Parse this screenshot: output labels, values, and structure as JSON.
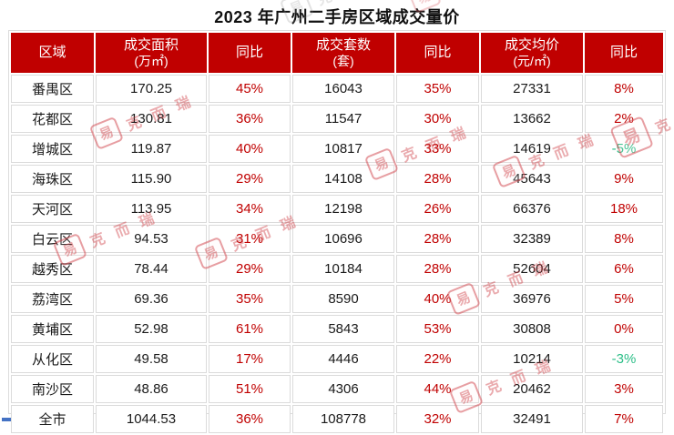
{
  "title": "2023 年广州二手房区域成交量价",
  "chart_data": {
    "type": "table",
    "title": "2023 年广州二手房区域成交量价",
    "columns": [
      "区域",
      "成交面积\n(万㎡)",
      "同比",
      "成交套数\n(套)",
      "同比",
      "成交均价\n(元/㎡)",
      "同比"
    ],
    "rows": [
      [
        "番禺区",
        "170.25",
        "45%",
        "16043",
        "35%",
        "27331",
        "8%"
      ],
      [
        "花都区",
        "130.81",
        "36%",
        "11547",
        "30%",
        "13662",
        "2%"
      ],
      [
        "增城区",
        "119.87",
        "40%",
        "10817",
        "33%",
        "14619",
        "-5%"
      ],
      [
        "海珠区",
        "115.90",
        "29%",
        "14108",
        "28%",
        "45643",
        "9%"
      ],
      [
        "天河区",
        "113.95",
        "34%",
        "12198",
        "26%",
        "66376",
        "18%"
      ],
      [
        "白云区",
        "94.53",
        "31%",
        "10696",
        "28%",
        "32389",
        "8%"
      ],
      [
        "越秀区",
        "78.44",
        "29%",
        "10184",
        "28%",
        "52604",
        "6%"
      ],
      [
        "荔湾区",
        "69.36",
        "35%",
        "8590",
        "40%",
        "36976",
        "5%"
      ],
      [
        "黄埔区",
        "52.98",
        "61%",
        "5843",
        "53%",
        "30808",
        "0%"
      ],
      [
        "从化区",
        "49.58",
        "17%",
        "4446",
        "22%",
        "10214",
        "-3%"
      ],
      [
        "南沙区",
        "48.86",
        "51%",
        "4306",
        "44%",
        "20462",
        "3%"
      ],
      [
        "全市",
        "1044.53",
        "36%",
        "108778",
        "32%",
        "32491",
        "7%"
      ]
    ],
    "yoy_column_indexes": [
      2,
      4,
      6
    ],
    "legend_position": "none",
    "grid": true
  },
  "colors": {
    "header_bg": "#C00000",
    "header_text": "#FFFFFF",
    "yoy_positive": "#C00000",
    "yoy_negative": "#2BBE87",
    "body_text": "#1A1A1A",
    "grid_line": "#DBDBDB",
    "watermark_red": "#CD373E",
    "corner_mark_blue": "#4472C4"
  },
  "watermark": {
    "stamp_char": "易",
    "brand_text": "克而瑞"
  }
}
